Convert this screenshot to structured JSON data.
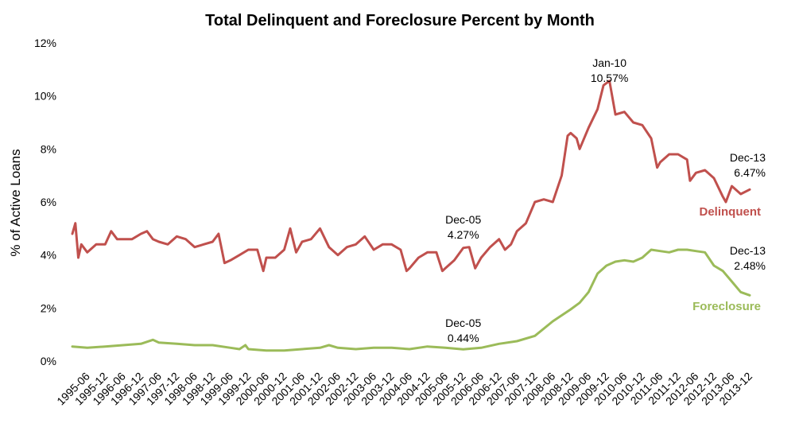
{
  "chart_data": {
    "type": "line",
    "title": "Total Delinquent and Foreclosure Percent by Month",
    "xlabel": "",
    "ylabel": "% of Active Loans",
    "ylim": [
      0,
      12
    ],
    "yticks": [
      0,
      2,
      4,
      6,
      8,
      10,
      12
    ],
    "ytick_labels": [
      "0%",
      "2%",
      "4%",
      "6%",
      "8%",
      "10%",
      "12%"
    ],
    "x_start": "1995-01",
    "x_end": "2013-12",
    "xtick_labels": [
      "1995-06",
      "1995-12",
      "1996-06",
      "1996-12",
      "1997-06",
      "1997-12",
      "1998-06",
      "1998-12",
      "1999-06",
      "1999-12",
      "2000-06",
      "2000-12",
      "2001-06",
      "2001-12",
      "2002-06",
      "2002-12",
      "2003-06",
      "2003-12",
      "2004-06",
      "2004-12",
      "2005-06",
      "2005-12",
      "2006-06",
      "2006-12",
      "2007-06",
      "2007-12",
      "2008-06",
      "2008-12",
      "2009-06",
      "2009-12",
      "2010-06",
      "2010-12",
      "2011-06",
      "2011-12",
      "2012-06",
      "2012-12",
      "2013-06",
      "2013-12"
    ],
    "series": [
      {
        "name": "Delinquent",
        "color": "#c0504d",
        "points": [
          [
            "1995-01",
            4.8
          ],
          [
            "1995-02",
            5.2
          ],
          [
            "1995-03",
            3.9
          ],
          [
            "1995-04",
            4.4
          ],
          [
            "1995-06",
            4.1
          ],
          [
            "1995-09",
            4.4
          ],
          [
            "1995-12",
            4.4
          ],
          [
            "1996-02",
            4.9
          ],
          [
            "1996-04",
            4.6
          ],
          [
            "1996-06",
            4.6
          ],
          [
            "1996-09",
            4.6
          ],
          [
            "1996-12",
            4.8
          ],
          [
            "1997-02",
            4.9
          ],
          [
            "1997-04",
            4.6
          ],
          [
            "1997-06",
            4.5
          ],
          [
            "1997-09",
            4.4
          ],
          [
            "1997-12",
            4.7
          ],
          [
            "1998-03",
            4.6
          ],
          [
            "1998-06",
            4.3
          ],
          [
            "1998-09",
            4.4
          ],
          [
            "1998-12",
            4.5
          ],
          [
            "1999-02",
            4.8
          ],
          [
            "1999-04",
            3.7
          ],
          [
            "1999-06",
            3.8
          ],
          [
            "1999-09",
            4.0
          ],
          [
            "1999-12",
            4.2
          ],
          [
            "2000-03",
            4.2
          ],
          [
            "2000-05",
            3.4
          ],
          [
            "2000-06",
            3.9
          ],
          [
            "2000-09",
            3.9
          ],
          [
            "2000-12",
            4.2
          ],
          [
            "2001-02",
            5.0
          ],
          [
            "2001-04",
            4.1
          ],
          [
            "2001-06",
            4.5
          ],
          [
            "2001-09",
            4.6
          ],
          [
            "2001-12",
            5.0
          ],
          [
            "2002-03",
            4.3
          ],
          [
            "2002-06",
            4.0
          ],
          [
            "2002-09",
            4.3
          ],
          [
            "2002-12",
            4.4
          ],
          [
            "2003-03",
            4.7
          ],
          [
            "2003-06",
            4.2
          ],
          [
            "2003-09",
            4.4
          ],
          [
            "2003-12",
            4.4
          ],
          [
            "2004-03",
            4.2
          ],
          [
            "2004-05",
            3.4
          ],
          [
            "2004-06",
            3.5
          ],
          [
            "2004-09",
            3.9
          ],
          [
            "2004-12",
            4.1
          ],
          [
            "2005-03",
            4.1
          ],
          [
            "2005-05",
            3.4
          ],
          [
            "2005-06",
            3.5
          ],
          [
            "2005-09",
            3.8
          ],
          [
            "2005-12",
            4.27
          ],
          [
            "2006-02",
            4.3
          ],
          [
            "2006-04",
            3.5
          ],
          [
            "2006-06",
            3.9
          ],
          [
            "2006-09",
            4.3
          ],
          [
            "2006-12",
            4.6
          ],
          [
            "2007-02",
            4.2
          ],
          [
            "2007-04",
            4.4
          ],
          [
            "2007-06",
            4.9
          ],
          [
            "2007-09",
            5.2
          ],
          [
            "2007-12",
            6.0
          ],
          [
            "2008-03",
            6.1
          ],
          [
            "2008-06",
            6.0
          ],
          [
            "2008-09",
            7.0
          ],
          [
            "2008-11",
            8.5
          ],
          [
            "2008-12",
            8.6
          ],
          [
            "2009-02",
            8.4
          ],
          [
            "2009-03",
            8.0
          ],
          [
            "2009-06",
            8.8
          ],
          [
            "2009-09",
            9.5
          ],
          [
            "2009-11",
            10.4
          ],
          [
            "2010-01",
            10.57
          ],
          [
            "2010-03",
            9.3
          ],
          [
            "2010-06",
            9.4
          ],
          [
            "2010-09",
            9.0
          ],
          [
            "2010-12",
            8.9
          ],
          [
            "2011-03",
            8.4
          ],
          [
            "2011-05",
            7.3
          ],
          [
            "2011-06",
            7.5
          ],
          [
            "2011-09",
            7.8
          ],
          [
            "2011-12",
            7.8
          ],
          [
            "2012-03",
            7.6
          ],
          [
            "2012-04",
            6.8
          ],
          [
            "2012-06",
            7.1
          ],
          [
            "2012-09",
            7.2
          ],
          [
            "2012-12",
            6.9
          ],
          [
            "2013-03",
            6.2
          ],
          [
            "2013-04",
            6.0
          ],
          [
            "2013-06",
            6.6
          ],
          [
            "2013-09",
            6.3
          ],
          [
            "2013-12",
            6.47
          ]
        ]
      },
      {
        "name": "Foreclosure",
        "color": "#9bbb59",
        "points": [
          [
            "1995-01",
            0.55
          ],
          [
            "1995-06",
            0.5
          ],
          [
            "1995-12",
            0.55
          ],
          [
            "1996-06",
            0.6
          ],
          [
            "1996-12",
            0.65
          ],
          [
            "1997-04",
            0.8
          ],
          [
            "1997-06",
            0.7
          ],
          [
            "1997-12",
            0.65
          ],
          [
            "1998-06",
            0.6
          ],
          [
            "1998-12",
            0.6
          ],
          [
            "1999-06",
            0.5
          ],
          [
            "1999-09",
            0.45
          ],
          [
            "1999-11",
            0.6
          ],
          [
            "1999-12",
            0.45
          ],
          [
            "2000-06",
            0.4
          ],
          [
            "2000-12",
            0.4
          ],
          [
            "2001-06",
            0.45
          ],
          [
            "2001-12",
            0.5
          ],
          [
            "2002-03",
            0.6
          ],
          [
            "2002-06",
            0.5
          ],
          [
            "2002-12",
            0.45
          ],
          [
            "2003-06",
            0.5
          ],
          [
            "2003-12",
            0.5
          ],
          [
            "2004-06",
            0.45
          ],
          [
            "2004-12",
            0.55
          ],
          [
            "2005-06",
            0.5
          ],
          [
            "2005-12",
            0.44
          ],
          [
            "2006-06",
            0.5
          ],
          [
            "2006-12",
            0.65
          ],
          [
            "2007-06",
            0.75
          ],
          [
            "2007-12",
            0.95
          ],
          [
            "2008-06",
            1.5
          ],
          [
            "2008-12",
            1.95
          ],
          [
            "2009-03",
            2.2
          ],
          [
            "2009-06",
            2.6
          ],
          [
            "2009-09",
            3.3
          ],
          [
            "2009-12",
            3.6
          ],
          [
            "2010-03",
            3.75
          ],
          [
            "2010-06",
            3.8
          ],
          [
            "2010-09",
            3.75
          ],
          [
            "2010-12",
            3.9
          ],
          [
            "2011-03",
            4.2
          ],
          [
            "2011-06",
            4.15
          ],
          [
            "2011-09",
            4.1
          ],
          [
            "2011-12",
            4.2
          ],
          [
            "2012-03",
            4.2
          ],
          [
            "2012-06",
            4.15
          ],
          [
            "2012-09",
            4.1
          ],
          [
            "2012-12",
            3.6
          ],
          [
            "2013-03",
            3.4
          ],
          [
            "2013-06",
            3.0
          ],
          [
            "2013-09",
            2.6
          ],
          [
            "2013-12",
            2.48
          ]
        ]
      }
    ],
    "annotations": [
      {
        "series": "Delinquent",
        "date": "2005-12",
        "label": "Dec-05",
        "value_label": "4.27%"
      },
      {
        "series": "Delinquent",
        "date": "2010-01",
        "label": "Jan-10",
        "value_label": "10.57%"
      },
      {
        "series": "Delinquent",
        "date": "2013-12",
        "label": "Dec-13",
        "value_label": "6.47%"
      },
      {
        "series": "Foreclosure",
        "date": "2005-12",
        "label": "Dec-05",
        "value_label": "0.44%"
      },
      {
        "series": "Foreclosure",
        "date": "2013-12",
        "label": "Dec-13",
        "value_label": "2.48%"
      }
    ],
    "series_labels": [
      {
        "series": "Delinquent",
        "text": "Delinquent",
        "color": "#c0504d"
      },
      {
        "series": "Foreclosure",
        "text": "Foreclosure",
        "color": "#9bbb59"
      }
    ]
  }
}
